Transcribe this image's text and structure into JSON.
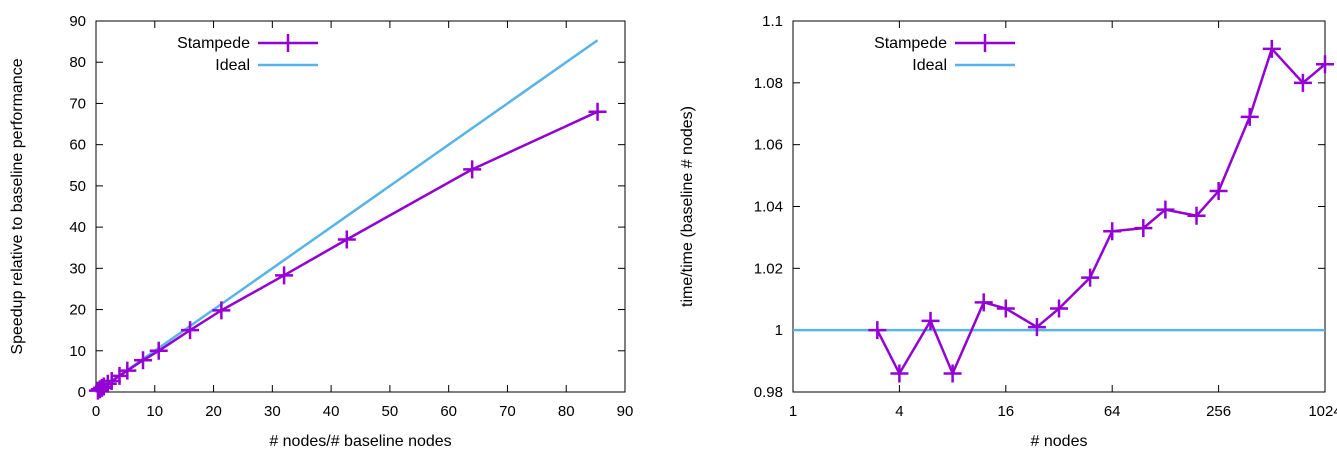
{
  "chart_data": [
    {
      "type": "line",
      "xlabel": "# nodes/# baseline nodes",
      "ylabel": "Speedup relative to baseline performance",
      "xlim": [
        0,
        90
      ],
      "ylim": [
        0,
        90
      ],
      "x_ticks": [
        "0",
        "10",
        "20",
        "30",
        "40",
        "50",
        "60",
        "70",
        "80",
        "90"
      ],
      "y_ticks": [
        "0",
        "10",
        "20",
        "30",
        "40",
        "50",
        "60",
        "70",
        "80",
        "90"
      ],
      "grid": false,
      "legend_position": "top-left",
      "series": [
        {
          "name": "Stampede",
          "color": "#9400d3",
          "marker": "plus",
          "points": [
            [
              0.33,
              0.33
            ],
            [
              0.67,
              0.67
            ],
            [
              1,
              1
            ],
            [
              1.33,
              1.33
            ],
            [
              2,
              2
            ],
            [
              2.67,
              2.67
            ],
            [
              4,
              3.9
            ],
            [
              5.33,
              5.2
            ],
            [
              8,
              7.7
            ],
            [
              10.67,
              10
            ],
            [
              16,
              15
            ],
            [
              21.33,
              19.8
            ],
            [
              32,
              28.3
            ],
            [
              42.67,
              37
            ],
            [
              64,
              54
            ],
            [
              85.33,
              68
            ]
          ]
        },
        {
          "name": "Ideal",
          "color": "#56b4e9",
          "marker": "none",
          "points": [
            [
              0,
              0
            ],
            [
              85.33,
              85.33
            ]
          ]
        }
      ]
    },
    {
      "type": "line",
      "xlabel": "# nodes",
      "ylabel": "time/time (baseline # nodes)",
      "x_scale": "log2",
      "xlim": [
        1,
        1024
      ],
      "ylim": [
        0.98,
        1.1
      ],
      "x_ticks": [
        "1",
        "4",
        "16",
        "64",
        "256",
        "1024"
      ],
      "y_ticks": [
        "0.98",
        "1",
        "1.02",
        "1.04",
        "1.06",
        "1.08",
        "1.1"
      ],
      "grid": false,
      "legend_position": "top-left",
      "series": [
        {
          "name": "Stampede",
          "color": "#9400d3",
          "marker": "plus",
          "points": [
            [
              3,
              1.0
            ],
            [
              4,
              0.986
            ],
            [
              6,
              1.003
            ],
            [
              8,
              0.986
            ],
            [
              12,
              1.009
            ],
            [
              16,
              1.007
            ],
            [
              24,
              1.001
            ],
            [
              32,
              1.007
            ],
            [
              48,
              1.017
            ],
            [
              64,
              1.032
            ],
            [
              96,
              1.033
            ],
            [
              128,
              1.039
            ],
            [
              192,
              1.037
            ],
            [
              256,
              1.045
            ],
            [
              384,
              1.069
            ],
            [
              512,
              1.091
            ],
            [
              768,
              1.08
            ],
            [
              1024,
              1.086
            ]
          ]
        },
        {
          "name": "Ideal",
          "color": "#56b4e9",
          "marker": "none",
          "points": [
            [
              1,
              1.0
            ],
            [
              1024,
              1.0
            ]
          ]
        }
      ]
    }
  ]
}
